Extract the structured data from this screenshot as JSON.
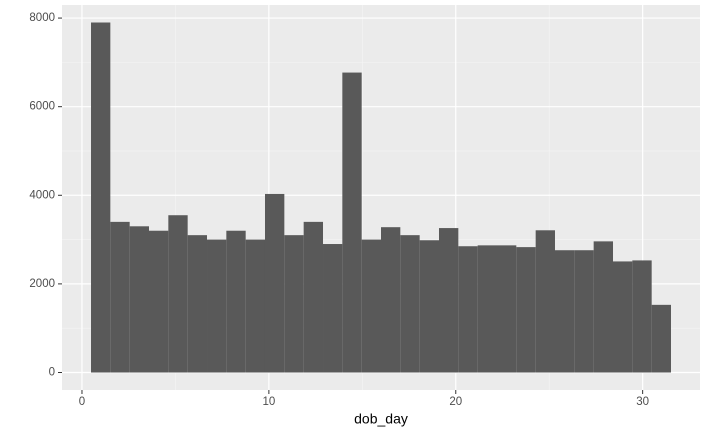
{
  "chart_data": {
    "type": "histogram",
    "xlabel": "dob_day",
    "bins": [
      0.483,
      1.517,
      2.552,
      3.586,
      4.621,
      5.655,
      6.69,
      7.724,
      8.759,
      9.793,
      10.828,
      11.862,
      12.897,
      13.931,
      14.966,
      16.0,
      17.034,
      18.069,
      19.103,
      20.138,
      21.172,
      22.207,
      23.241,
      24.276,
      25.31,
      26.345,
      27.379,
      28.414,
      29.448,
      30.483,
      31.517
    ],
    "values": [
      7900,
      3400,
      3300,
      3200,
      3550,
      3100,
      3000,
      3200,
      3000,
      4030,
      3100,
      3400,
      2900,
      6770,
      3000,
      3280,
      3100,
      2985,
      3260,
      2850,
      2870,
      2870,
      2830,
      3210,
      2760,
      2760,
      2960,
      2507,
      2530,
      1527
    ],
    "color": "#595959",
    "xlim": [
      -1.069,
      33.069
    ],
    "xticks": [
      0,
      10,
      20,
      30
    ],
    "xminor": [
      5,
      15,
      25
    ],
    "ylim": [
      -395,
      8295
    ],
    "yticks": [
      0,
      2000,
      4000,
      6000,
      8000
    ],
    "yminor": [
      1000,
      3000,
      5000,
      7000
    ],
    "grid": true
  }
}
